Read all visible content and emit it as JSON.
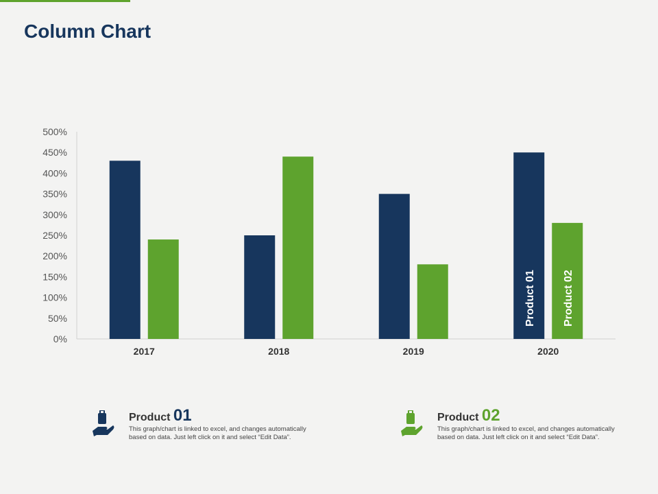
{
  "title": "Column Chart",
  "chart_data": {
    "type": "bar",
    "categories": [
      "2017",
      "2018",
      "2019",
      "2020"
    ],
    "series": [
      {
        "name": "Product 01",
        "values": [
          430,
          250,
          350,
          450
        ],
        "color": "#17365d"
      },
      {
        "name": "Product 02",
        "values": [
          240,
          440,
          180,
          280
        ],
        "color": "#5ea32e"
      }
    ],
    "yticks": [
      "0%",
      "50%",
      "100%",
      "150%",
      "200%",
      "250%",
      "300%",
      "350%",
      "400%",
      "450%",
      "500%"
    ],
    "ylim": [
      0,
      500
    ],
    "grid": false,
    "series_labels": [
      "Product 01",
      "Product 02"
    ]
  },
  "products": [
    {
      "label": "Product",
      "num": "01",
      "desc": "This graph/chart is linked to excel, and changes automatically based on data. Just left click on it and select “Edit Data”.",
      "color": "#17365d",
      "icon": "hand-holding-bag-icon"
    },
    {
      "label": "Product",
      "num": "02",
      "desc": "This graph/chart is linked to excel, and changes automatically based on data. Just left click on it and select “Edit Data”.",
      "color": "#5ea32e",
      "icon": "hand-holding-bag-icon"
    }
  ]
}
